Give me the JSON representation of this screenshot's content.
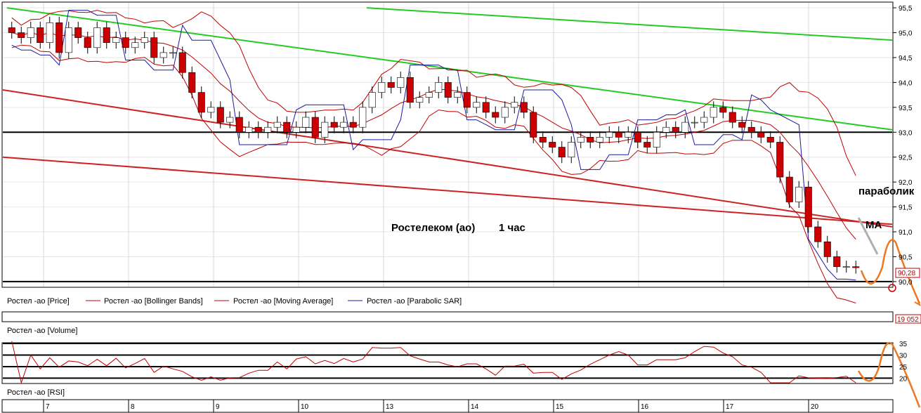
{
  "chart_data": {
    "type": "candlestick",
    "title": "",
    "annotation_title": "Ростелеком (ао)",
    "annotation_timeframe": "1 час",
    "annotation_parabolic": "параболик",
    "annotation_ma": "МА",
    "price_axis": {
      "ylim": [
        89.9,
        95.6
      ],
      "ticks": [
        "95,5",
        "95,0",
        "94,5",
        "94,0",
        "93,5",
        "93,0",
        "92,5",
        "92,0",
        "91,5",
        "91,0",
        "90,5",
        "90,0"
      ],
      "last_price_label": "90,28",
      "last_price": 90.28
    },
    "x_axis": {
      "day_labels": [
        "7",
        "8",
        "9",
        "10",
        "13",
        "14",
        "15",
        "16",
        "17",
        "20"
      ]
    },
    "legend": [
      {
        "label": "Ростел -ао [Price]",
        "color": "#000000"
      },
      {
        "label": "Ростел -ао [Bollinger Bands]",
        "color": "#c00000"
      },
      {
        "label": "Ростел -ао [Moving Average]",
        "color": "#c00000"
      },
      {
        "label": "Ростел -ао [Parabolic SAR]",
        "color": "#000080"
      }
    ],
    "volume_panel": {
      "label": "Ростел -ао [Volume]",
      "last_value_label": "19 052"
    },
    "rsi_panel": {
      "label": "Ростел -ао [RSI]",
      "ticks": [
        "35",
        "30",
        "25",
        "20"
      ],
      "ylim": [
        18,
        35
      ]
    },
    "horizontal_levels": [
      93.0,
      90.0
    ],
    "trend_lines": [
      {
        "name": "green-upper-1",
        "color": "#22cc22",
        "points": [
          [
            0.1,
            95.5
          ],
          [
            22.0,
            93.05
          ]
        ]
      },
      {
        "name": "green-upper-2",
        "color": "#22cc22",
        "points": [
          [
            9.0,
            95.5
          ],
          [
            22.0,
            94.85
          ]
        ]
      },
      {
        "name": "red-lower-1",
        "color": "#cc2222",
        "points": [
          [
            0.0,
            93.85
          ],
          [
            22.0,
            91.1
          ]
        ]
      },
      {
        "name": "red-lower-2",
        "color": "#cc2222",
        "points": [
          [
            0.0,
            92.5
          ],
          [
            22.0,
            91.15
          ]
        ]
      }
    ],
    "candles_per_day": 9,
    "close_series": [
      95.0,
      94.9,
      95.1,
      94.8,
      95.2,
      94.6,
      95.1,
      94.9,
      94.7,
      95.1,
      94.8,
      94.9,
      94.7,
      94.8,
      94.9,
      94.5,
      94.6,
      94.6,
      94.2,
      93.8,
      93.4,
      93.5,
      93.2,
      93.3,
      93.0,
      93.1,
      93.0,
      93.1,
      93.2,
      93.0,
      93.1,
      93.3,
      92.9,
      93.2,
      93.1,
      93.2,
      93.1,
      93.5,
      93.8,
      94.0,
      93.9,
      94.1,
      93.6,
      93.7,
      93.8,
      94.0,
      93.7,
      93.8,
      93.5,
      93.6,
      93.4,
      93.3,
      93.5,
      93.6,
      93.4,
      92.9,
      92.8,
      92.7,
      92.5,
      92.8,
      92.9,
      92.8,
      92.9,
      93.0,
      92.9,
      93.0,
      92.8,
      92.7,
      93.0,
      93.1,
      93.0,
      93.2,
      93.2,
      93.3,
      93.5,
      93.4,
      93.2,
      93.1,
      93.0,
      92.9,
      92.8,
      92.1,
      91.6,
      91.9,
      91.1,
      90.8,
      90.5,
      90.3,
      90.3,
      90.28
    ]
  }
}
